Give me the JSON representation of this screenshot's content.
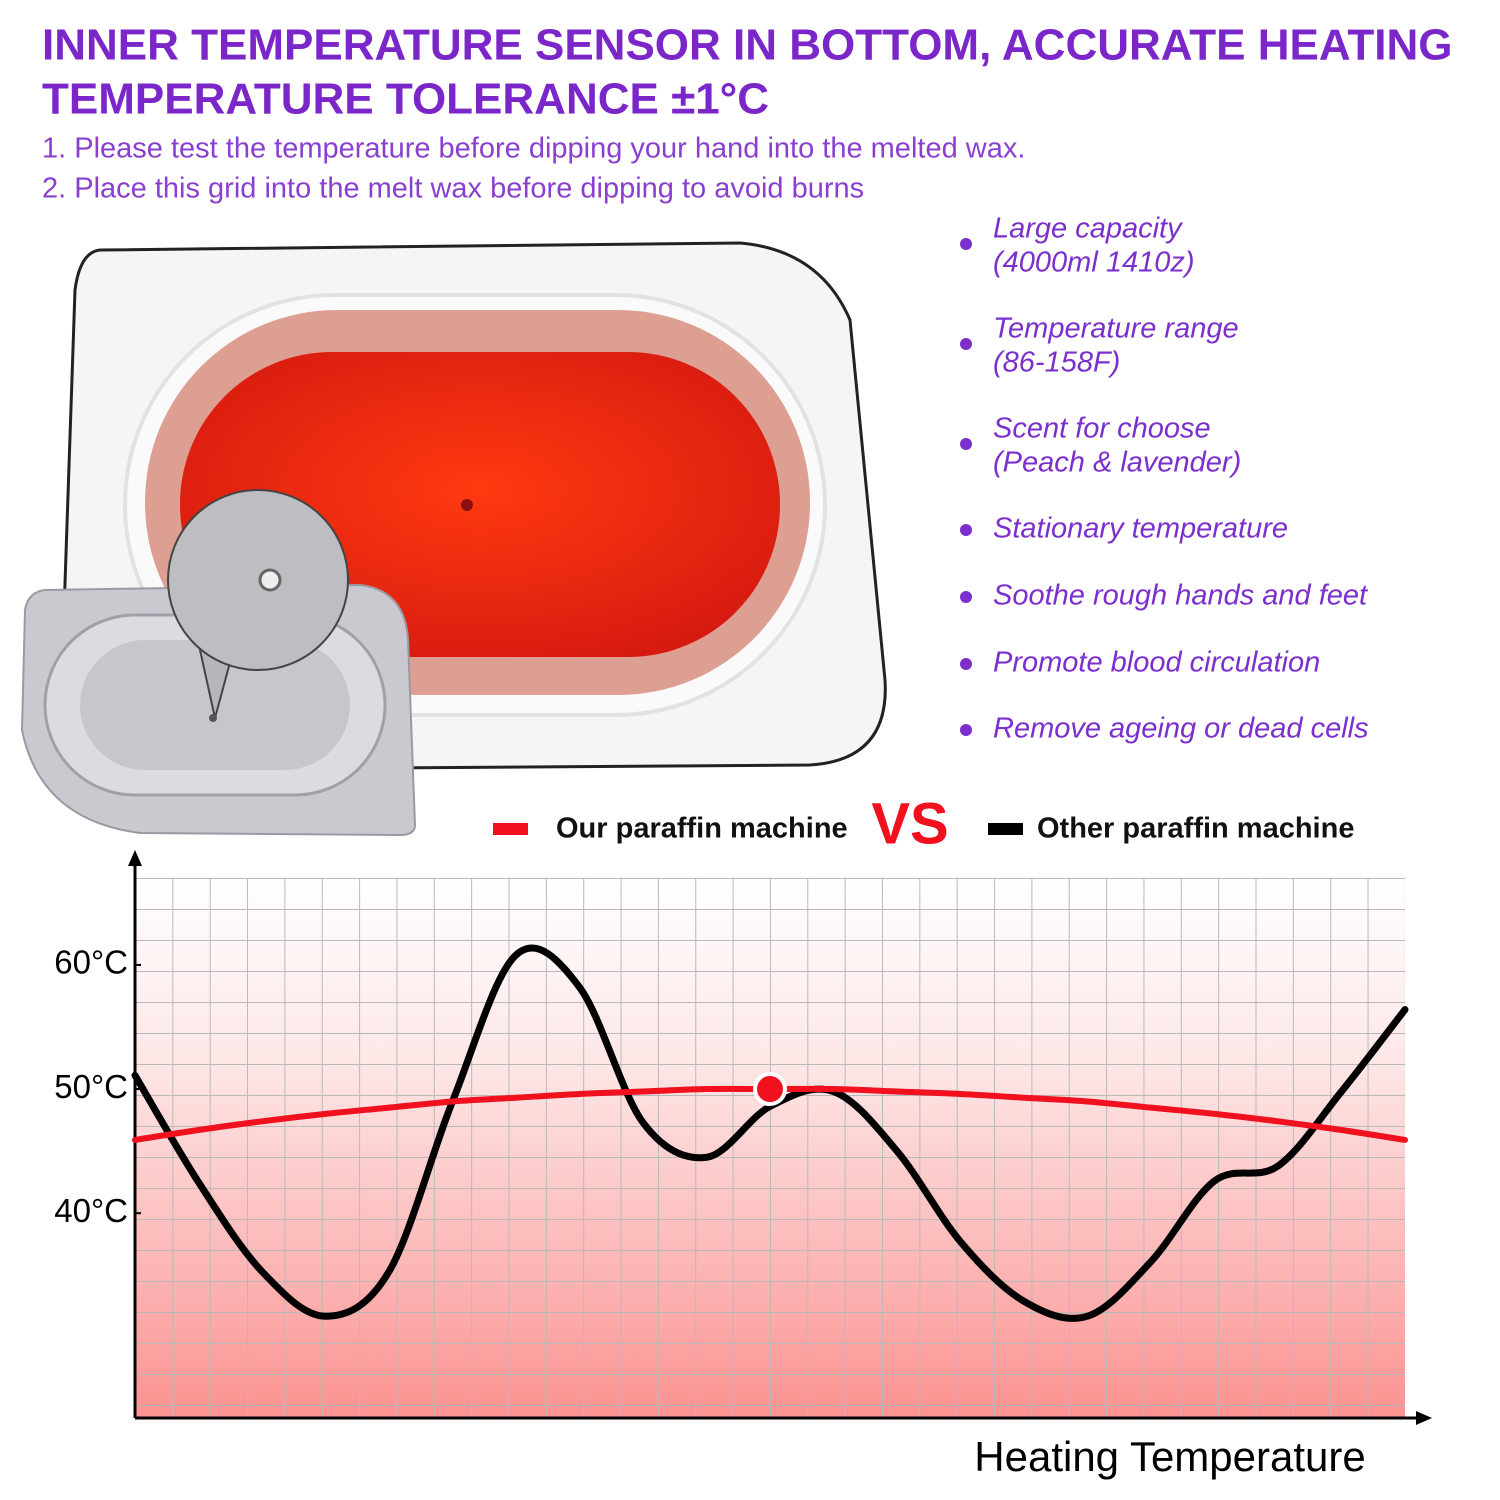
{
  "header": {
    "title_lines": [
      "INNER TEMPERATURE SENSOR IN BOTTOM, ACCURATE HEATING",
      "TEMPERATURE TOLERANCE ±1°C"
    ],
    "notes": [
      "1. Please test the temperature before dipping your hand into the melted wax.",
      "2. Place this grid into the melt wax before dipping to avoid burns"
    ]
  },
  "features": [
    {
      "lines": [
        "Large capacity",
        "(4000ml 1410z)"
      ]
    },
    {
      "lines": [
        "Temperature range",
        "(86-158F)"
      ]
    },
    {
      "lines": [
        "Scent for choose",
        "(Peach & lavender)"
      ]
    },
    {
      "lines": [
        "Stationary temperature"
      ]
    },
    {
      "lines": [
        "Soothe rough hands and feet"
      ]
    },
    {
      "lines": [
        "Promote blood circulation"
      ]
    },
    {
      "lines": [
        "Remove ageing or dead cells"
      ]
    }
  ],
  "chart_data": {
    "type": "line",
    "annotation": "VS",
    "x_label": "Heating Temperature",
    "categories": [
      null,
      null,
      null,
      null,
      null,
      null,
      null,
      null,
      null,
      null,
      null,
      null,
      null,
      null,
      null,
      null,
      null,
      null,
      null,
      null,
      null
    ],
    "series": [
      {
        "name": "Our paraffin machine",
        "color": "#f0101e",
        "values": [
          45.9,
          46.7,
          47.4,
          48.0,
          48.5,
          49.0,
          49.3,
          49.6,
          49.8,
          50.0,
          50.0,
          50.0,
          49.8,
          49.6,
          49.3,
          49.0,
          48.5,
          48.0,
          47.4,
          46.7,
          45.9
        ]
      },
      {
        "name": "Other paraffin machine",
        "color": "#000000",
        "values": [
          51.1,
          42.5,
          35.3,
          31.7,
          35.3,
          49.0,
          60.8,
          58.2,
          47.3,
          44.5,
          48.6,
          49.8,
          45.0,
          37.7,
          32.9,
          31.7,
          36.1,
          42.6,
          43.8,
          49.8,
          56.4
        ]
      }
    ],
    "ylim": [
      23.5,
      67
    ],
    "yticks": [
      {
        "value": 40,
        "label": "40°C"
      },
      {
        "value": 50,
        "label": "50°C"
      },
      {
        "value": 60,
        "label": "60°C"
      }
    ],
    "grid": true
  }
}
